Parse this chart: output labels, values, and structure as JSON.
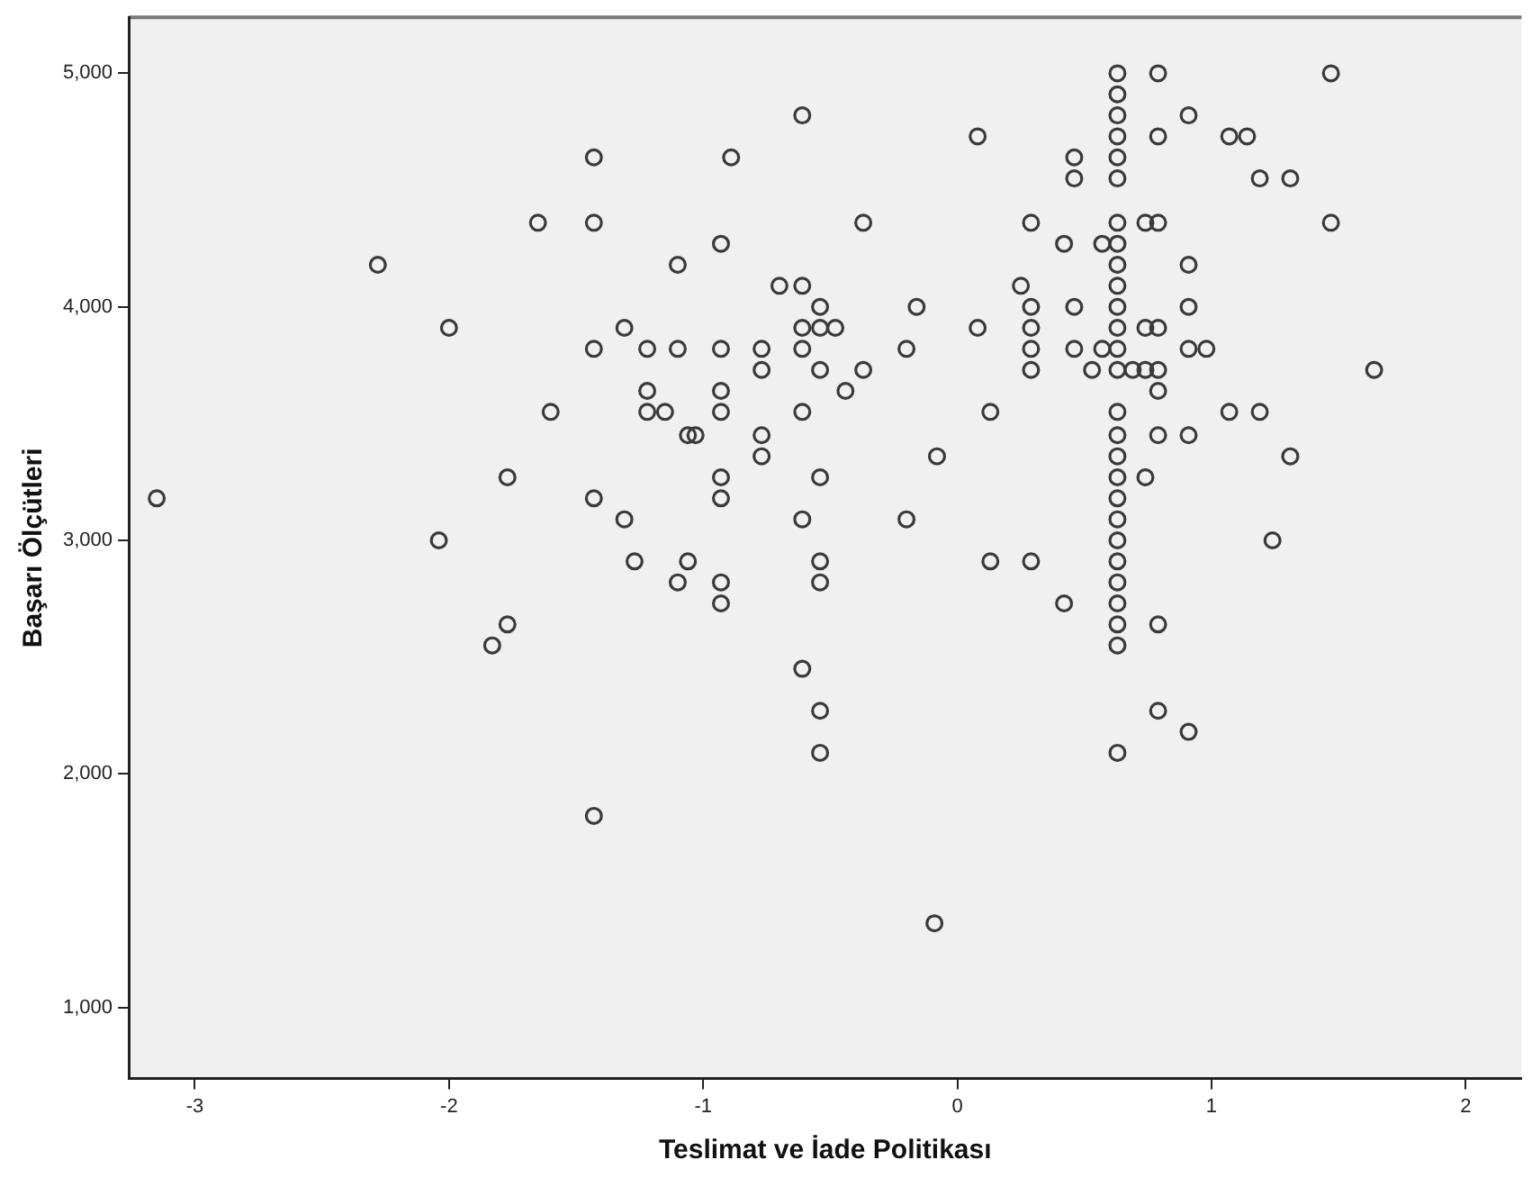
{
  "chart_data": {
    "type": "scatter",
    "xlabel": "Teslimat ve İade Politikası",
    "ylabel": "Başarı Ölçütleri",
    "xlim": [
      -3.26,
      2.22
    ],
    "xticks": [
      -3,
      -2,
      -1,
      0,
      1,
      2
    ],
    "ylim": [
      695,
      5240
    ],
    "yticks": [
      {
        "value": 1000,
        "label": "1,000"
      },
      {
        "value": 2000,
        "label": "2,000"
      },
      {
        "value": 3000,
        "label": "3,000"
      },
      {
        "value": 4000,
        "label": "4,000"
      },
      {
        "value": 5000,
        "label": "5,000"
      }
    ],
    "grid": false,
    "legend": false,
    "marker": "circle",
    "series": [
      {
        "color": "#3a3a3a",
        "x": [
          -0.61,
          -1.43,
          -0.89,
          -1.65,
          -1.43,
          -0.93,
          -2.28,
          -1.1,
          -0.7,
          -0.61,
          -0.54,
          -2.0,
          -1.31,
          -0.61,
          -0.54,
          -1.43,
          -1.22,
          -1.1,
          -0.93,
          -0.77,
          -0.61,
          -0.77,
          -0.54,
          -1.22,
          -0.93,
          -1.6,
          -1.22,
          -1.15,
          -0.93,
          -0.61,
          -1.06,
          -1.03,
          -0.77,
          -0.77,
          -1.77,
          -0.93,
          -0.54,
          -3.15,
          -1.43,
          -0.93,
          -1.31,
          -0.61,
          -2.04,
          -1.27,
          -1.06,
          -1.1,
          -0.93,
          -0.93,
          -0.54,
          -0.54,
          -1.77,
          -1.83,
          -0.61,
          -0.54,
          -0.54,
          -1.43,
          0.63,
          0.79,
          1.47,
          0.63,
          0.63,
          0.91,
          0.08,
          0.63,
          0.79,
          1.07,
          1.14,
          0.46,
          0.63,
          0.46,
          0.63,
          1.19,
          1.31,
          -0.37,
          0.29,
          0.63,
          0.74,
          0.79,
          1.47,
          0.42,
          0.57,
          0.63,
          0.63,
          0.91,
          0.25,
          0.63,
          -0.16,
          0.29,
          0.46,
          0.63,
          0.91,
          -0.48,
          0.08,
          0.29,
          0.63,
          0.74,
          0.79,
          -0.2,
          0.29,
          0.46,
          0.57,
          0.63,
          0.91,
          0.98,
          -0.37,
          0.29,
          0.53,
          0.63,
          0.69,
          0.74,
          0.79,
          1.64,
          -0.44,
          0.79,
          0.13,
          0.63,
          1.07,
          1.19,
          0.63,
          0.79,
          0.91,
          -0.08,
          0.63,
          1.31,
          0.63,
          0.74,
          0.63,
          -0.2,
          0.63,
          0.63,
          1.24,
          0.13,
          0.29,
          0.63,
          0.63,
          0.42,
          0.63,
          0.63,
          0.79,
          0.63,
          0.79,
          0.91,
          0.63,
          -0.09
        ],
        "values": [
          4820,
          4640,
          4640,
          4360,
          4360,
          4270,
          4180,
          4180,
          4090,
          4090,
          4000,
          3910,
          3910,
          3910,
          3910,
          3820,
          3820,
          3820,
          3820,
          3820,
          3820,
          3730,
          3730,
          3640,
          3640,
          3550,
          3550,
          3550,
          3550,
          3550,
          3450,
          3450,
          3450,
          3360,
          3270,
          3270,
          3270,
          3180,
          3180,
          3180,
          3090,
          3090,
          3000,
          2910,
          2910,
          2820,
          2820,
          2730,
          2910,
          2820,
          2640,
          2550,
          2450,
          2270,
          2090,
          1820,
          5000,
          5000,
          5000,
          4910,
          4820,
          4820,
          4730,
          4730,
          4730,
          4730,
          4730,
          4640,
          4640,
          4550,
          4550,
          4550,
          4550,
          4360,
          4360,
          4360,
          4360,
          4360,
          4360,
          4270,
          4270,
          4270,
          4180,
          4180,
          4090,
          4090,
          4000,
          4000,
          4000,
          4000,
          4000,
          3910,
          3910,
          3910,
          3910,
          3910,
          3910,
          3820,
          3820,
          3820,
          3820,
          3820,
          3820,
          3820,
          3730,
          3730,
          3730,
          3730,
          3730,
          3730,
          3730,
          3730,
          3640,
          3640,
          3550,
          3550,
          3550,
          3550,
          3450,
          3450,
          3450,
          3360,
          3360,
          3360,
          3270,
          3270,
          3180,
          3090,
          3090,
          3000,
          3000,
          2910,
          2910,
          2910,
          2820,
          2730,
          2730,
          2640,
          2640,
          2550,
          2270,
          2180,
          2090,
          1360
        ]
      }
    ]
  }
}
